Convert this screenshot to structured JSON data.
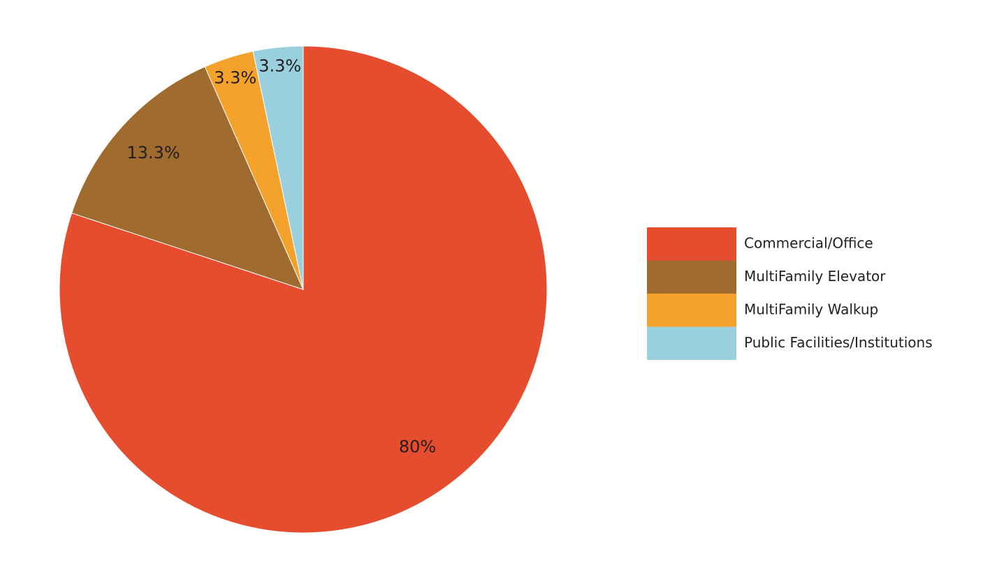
{
  "chart_data": {
    "type": "pie",
    "slices": [
      {
        "label": "Commercial/Office",
        "value": 80,
        "display": "80%",
        "color": "#e64c2e"
      },
      {
        "label": "MultiFamily Elevator",
        "value": 13.3,
        "display": "13.3%",
        "color": "#a06b2e"
      },
      {
        "label": "MultiFamily Walkup",
        "value": 3.3,
        "display": "3.3%",
        "color": "#f5a22d"
      },
      {
        "label": "Public Facilities/Institutions",
        "value": 3.3,
        "display": "3.3%",
        "color": "#9ad0de"
      }
    ],
    "legend_position": "right"
  }
}
